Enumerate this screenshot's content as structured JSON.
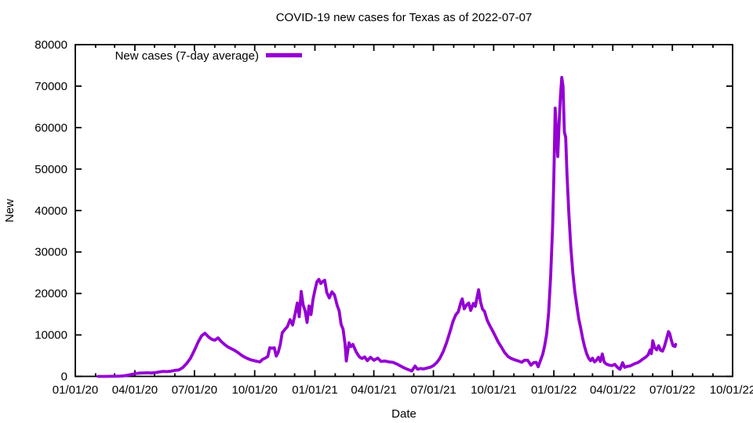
{
  "chart_data": {
    "type": "line",
    "title": "COVID-19 new cases for Texas as of 2022-07-07",
    "xlabel": "Date",
    "ylabel": "New",
    "grid": false,
    "legend_position": "top-left-inside",
    "legend": [
      {
        "label": "New cases (7-day average)",
        "color": "#9400d3"
      }
    ],
    "line_color": "#9400d3",
    "line_width": 3.8,
    "x_axis": {
      "start_date": "2020-01-01",
      "end_date": "2022-10-01",
      "major_tick_dates": [
        "2020-01-01",
        "2020-04-01",
        "2020-07-01",
        "2020-10-01",
        "2021-01-01",
        "2021-04-01",
        "2021-07-01",
        "2021-10-01",
        "2022-01-01",
        "2022-04-01",
        "2022-07-01",
        "2022-10-01"
      ],
      "major_tick_labels": [
        "01/01/20",
        "04/01/20",
        "07/01/20",
        "10/01/20",
        "01/01/21",
        "04/01/21",
        "07/01/21",
        "10/01/21",
        "01/01/22",
        "04/01/22",
        "07/01/22",
        "10/01/22"
      ],
      "minor_ticks": "monthly"
    },
    "y_axis": {
      "min": 0,
      "max": 80000,
      "tick_step": 10000,
      "tick_labels": [
        "0",
        "10000",
        "20000",
        "30000",
        "40000",
        "50000",
        "60000",
        "70000",
        "80000"
      ]
    },
    "series": [
      {
        "name": "New cases (7-day average)",
        "points": [
          [
            "2020-02-05",
            0
          ],
          [
            "2020-02-15",
            0
          ],
          [
            "2020-02-23",
            10
          ],
          [
            "2020-03-02",
            30
          ],
          [
            "2020-03-09",
            70
          ],
          [
            "2020-03-15",
            140
          ],
          [
            "2020-03-21",
            280
          ],
          [
            "2020-03-27",
            480
          ],
          [
            "2020-04-02",
            680
          ],
          [
            "2020-04-08",
            790
          ],
          [
            "2020-04-14",
            830
          ],
          [
            "2020-04-20",
            870
          ],
          [
            "2020-04-26",
            810
          ],
          [
            "2020-05-02",
            900
          ],
          [
            "2020-05-08",
            1050
          ],
          [
            "2020-05-14",
            1200
          ],
          [
            "2020-05-20",
            1150
          ],
          [
            "2020-05-26",
            1250
          ],
          [
            "2020-06-01",
            1450
          ],
          [
            "2020-06-07",
            1550
          ],
          [
            "2020-06-13",
            2100
          ],
          [
            "2020-06-19",
            3100
          ],
          [
            "2020-06-25",
            4400
          ],
          [
            "2020-07-01",
            6300
          ],
          [
            "2020-07-07",
            8400
          ],
          [
            "2020-07-12",
            9800
          ],
          [
            "2020-07-17",
            10400
          ],
          [
            "2020-07-22",
            9600
          ],
          [
            "2020-07-27",
            9000
          ],
          [
            "2020-08-01",
            8700
          ],
          [
            "2020-08-06",
            9300
          ],
          [
            "2020-08-11",
            8400
          ],
          [
            "2020-08-16",
            7700
          ],
          [
            "2020-08-21",
            7100
          ],
          [
            "2020-08-26",
            6700
          ],
          [
            "2020-08-31",
            6300
          ],
          [
            "2020-09-05",
            5800
          ],
          [
            "2020-09-10",
            5200
          ],
          [
            "2020-09-15",
            4700
          ],
          [
            "2020-09-20",
            4300
          ],
          [
            "2020-09-25",
            4000
          ],
          [
            "2020-09-30",
            3800
          ],
          [
            "2020-10-05",
            3600
          ],
          [
            "2020-10-09",
            3500
          ],
          [
            "2020-10-13",
            4100
          ],
          [
            "2020-10-17",
            4400
          ],
          [
            "2020-10-21",
            4800
          ],
          [
            "2020-10-24",
            6900
          ],
          [
            "2020-10-28",
            6800
          ],
          [
            "2020-10-31",
            6900
          ],
          [
            "2020-11-03",
            4900
          ],
          [
            "2020-11-06",
            5800
          ],
          [
            "2020-11-09",
            7600
          ],
          [
            "2020-11-12",
            10500
          ],
          [
            "2020-11-16",
            11300
          ],
          [
            "2020-11-20",
            12000
          ],
          [
            "2020-11-24",
            13700
          ],
          [
            "2020-11-28",
            12400
          ],
          [
            "2020-12-02",
            15200
          ],
          [
            "2020-12-05",
            17700
          ],
          [
            "2020-12-08",
            14400
          ],
          [
            "2020-12-11",
            20500
          ],
          [
            "2020-12-14",
            17200
          ],
          [
            "2020-12-17",
            15800
          ],
          [
            "2020-12-20",
            13000
          ],
          [
            "2020-12-23",
            17000
          ],
          [
            "2020-12-26",
            14900
          ],
          [
            "2020-12-29",
            18500
          ],
          [
            "2021-01-01",
            20800
          ],
          [
            "2021-01-04",
            22800
          ],
          [
            "2021-01-07",
            23400
          ],
          [
            "2021-01-10",
            22400
          ],
          [
            "2021-01-13",
            22900
          ],
          [
            "2021-01-16",
            23200
          ],
          [
            "2021-01-19",
            20300
          ],
          [
            "2021-01-23",
            18900
          ],
          [
            "2021-01-27",
            20400
          ],
          [
            "2021-01-31",
            19600
          ],
          [
            "2021-02-04",
            17100
          ],
          [
            "2021-02-07",
            15800
          ],
          [
            "2021-02-10",
            12500
          ],
          [
            "2021-02-13",
            11400
          ],
          [
            "2021-02-16",
            7800
          ],
          [
            "2021-02-18",
            3700
          ],
          [
            "2021-02-22",
            8100
          ],
          [
            "2021-02-25",
            7200
          ],
          [
            "2021-02-28",
            7700
          ],
          [
            "2021-03-05",
            5900
          ],
          [
            "2021-03-10",
            4700
          ],
          [
            "2021-03-14",
            4300
          ],
          [
            "2021-03-18",
            4700
          ],
          [
            "2021-03-22",
            3800
          ],
          [
            "2021-03-27",
            4600
          ],
          [
            "2021-04-01",
            3900
          ],
          [
            "2021-04-07",
            4400
          ],
          [
            "2021-04-12",
            3600
          ],
          [
            "2021-04-18",
            3700
          ],
          [
            "2021-04-24",
            3500
          ],
          [
            "2021-04-30",
            3400
          ],
          [
            "2021-05-06",
            3000
          ],
          [
            "2021-05-12",
            2500
          ],
          [
            "2021-05-18",
            2000
          ],
          [
            "2021-05-24",
            1600
          ],
          [
            "2021-05-29",
            1300
          ],
          [
            "2021-06-03",
            2500
          ],
          [
            "2021-06-07",
            1700
          ],
          [
            "2021-06-11",
            1900
          ],
          [
            "2021-06-16",
            1800
          ],
          [
            "2021-06-21",
            2000
          ],
          [
            "2021-06-26",
            2200
          ],
          [
            "2021-07-01",
            2600
          ],
          [
            "2021-07-06",
            3300
          ],
          [
            "2021-07-11",
            4400
          ],
          [
            "2021-07-16",
            6000
          ],
          [
            "2021-07-21",
            8100
          ],
          [
            "2021-07-26",
            10600
          ],
          [
            "2021-07-31",
            13300
          ],
          [
            "2021-08-04",
            14800
          ],
          [
            "2021-08-08",
            15600
          ],
          [
            "2021-08-12",
            17900
          ],
          [
            "2021-08-14",
            18700
          ],
          [
            "2021-08-17",
            16300
          ],
          [
            "2021-08-21",
            17300
          ],
          [
            "2021-08-24",
            17700
          ],
          [
            "2021-08-27",
            15900
          ],
          [
            "2021-08-31",
            17600
          ],
          [
            "2021-09-03",
            16900
          ],
          [
            "2021-09-06",
            19300
          ],
          [
            "2021-09-08",
            20900
          ],
          [
            "2021-09-11",
            17900
          ],
          [
            "2021-09-14",
            16200
          ],
          [
            "2021-09-17",
            15700
          ],
          [
            "2021-09-21",
            13600
          ],
          [
            "2021-09-25",
            12300
          ],
          [
            "2021-09-29",
            11100
          ],
          [
            "2021-10-03",
            9900
          ],
          [
            "2021-10-08",
            8300
          ],
          [
            "2021-10-13",
            7000
          ],
          [
            "2021-10-18",
            5700
          ],
          [
            "2021-10-23",
            4800
          ],
          [
            "2021-10-28",
            4300
          ],
          [
            "2021-11-02",
            4000
          ],
          [
            "2021-11-08",
            3700
          ],
          [
            "2021-11-13",
            3400
          ],
          [
            "2021-11-17",
            3900
          ],
          [
            "2021-11-22",
            3900
          ],
          [
            "2021-11-27",
            2700
          ],
          [
            "2021-12-01",
            3300
          ],
          [
            "2021-12-05",
            3400
          ],
          [
            "2021-12-08",
            2300
          ],
          [
            "2021-12-11",
            3600
          ],
          [
            "2021-12-15",
            5300
          ],
          [
            "2021-12-18",
            7500
          ],
          [
            "2021-12-21",
            10300
          ],
          [
            "2021-12-24",
            15500
          ],
          [
            "2021-12-27",
            24000
          ],
          [
            "2021-12-30",
            36000
          ],
          [
            "2022-01-01",
            48000
          ],
          [
            "2022-01-03",
            64700
          ],
          [
            "2022-01-05",
            58500
          ],
          [
            "2022-01-07",
            53000
          ],
          [
            "2022-01-09",
            61000
          ],
          [
            "2022-01-11",
            67500
          ],
          [
            "2022-01-13",
            72100
          ],
          [
            "2022-01-15",
            70000
          ],
          [
            "2022-01-17",
            59000
          ],
          [
            "2022-01-19",
            57600
          ],
          [
            "2022-01-21",
            49000
          ],
          [
            "2022-01-24",
            39000
          ],
          [
            "2022-01-27",
            31000
          ],
          [
            "2022-01-30",
            25000
          ],
          [
            "2022-02-02",
            20500
          ],
          [
            "2022-02-05",
            17000
          ],
          [
            "2022-02-08",
            13800
          ],
          [
            "2022-02-11",
            11600
          ],
          [
            "2022-02-14",
            9100
          ],
          [
            "2022-02-17",
            7100
          ],
          [
            "2022-02-20",
            5500
          ],
          [
            "2022-02-23",
            4400
          ],
          [
            "2022-02-26",
            3800
          ],
          [
            "2022-03-01",
            4400
          ],
          [
            "2022-03-04",
            3500
          ],
          [
            "2022-03-07",
            3900
          ],
          [
            "2022-03-10",
            4600
          ],
          [
            "2022-03-13",
            3600
          ],
          [
            "2022-03-16",
            5400
          ],
          [
            "2022-03-19",
            3400
          ],
          [
            "2022-03-23",
            2900
          ],
          [
            "2022-03-27",
            2700
          ],
          [
            "2022-03-31",
            2600
          ],
          [
            "2022-04-04",
            2900
          ],
          [
            "2022-04-08",
            2200
          ],
          [
            "2022-04-12",
            1700
          ],
          [
            "2022-04-16",
            3300
          ],
          [
            "2022-04-19",
            2200
          ],
          [
            "2022-04-23",
            2400
          ],
          [
            "2022-04-27",
            2500
          ],
          [
            "2022-05-01",
            2800
          ],
          [
            "2022-05-05",
            3100
          ],
          [
            "2022-05-09",
            3300
          ],
          [
            "2022-05-13",
            3700
          ],
          [
            "2022-05-17",
            4200
          ],
          [
            "2022-05-21",
            4600
          ],
          [
            "2022-05-25",
            5200
          ],
          [
            "2022-05-28",
            6400
          ],
          [
            "2022-05-30",
            5500
          ],
          [
            "2022-06-01",
            8600
          ],
          [
            "2022-06-04",
            6900
          ],
          [
            "2022-06-07",
            6400
          ],
          [
            "2022-06-10",
            7400
          ],
          [
            "2022-06-13",
            6300
          ],
          [
            "2022-06-16",
            6100
          ],
          [
            "2022-06-19",
            7300
          ],
          [
            "2022-06-22",
            9000
          ],
          [
            "2022-06-25",
            10800
          ],
          [
            "2022-06-27",
            10300
          ],
          [
            "2022-06-29",
            9000
          ],
          [
            "2022-07-02",
            7400
          ],
          [
            "2022-07-05",
            7200
          ],
          [
            "2022-07-06",
            7700
          ]
        ]
      }
    ]
  }
}
